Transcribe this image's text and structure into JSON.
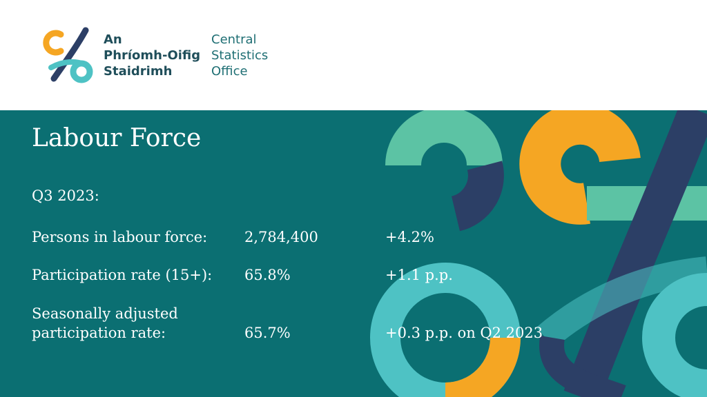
{
  "logo": {
    "irish_lines": [
      "An",
      "Phríomh-Oifig",
      "Staidrimh"
    ],
    "english_lines": [
      "Central",
      "Statistics",
      "Office"
    ],
    "mark_icon": "cso-swirl-logo-icon"
  },
  "slide": {
    "title": "Labour Force",
    "period": "Q3 2023:",
    "rows": [
      {
        "label": "Persons in labour force:",
        "value": "2,784,400",
        "change": "+4.2%"
      },
      {
        "label": "Participation rate (15+):",
        "value": "65.8%",
        "change": "+1.1 p.p."
      },
      {
        "label_lines": [
          "Seasonally adjusted",
          "participation rate:"
        ],
        "value": "65.7%",
        "change": "+0.3 p.p. on Q2 2023"
      }
    ]
  },
  "colors": {
    "panel": "#0b6f72",
    "mint": "#5cc3a4",
    "navy": "#2c3f66",
    "orange": "#f5a623",
    "aqua": "#4ec2c4",
    "text_dark": "#1f4e5a"
  }
}
